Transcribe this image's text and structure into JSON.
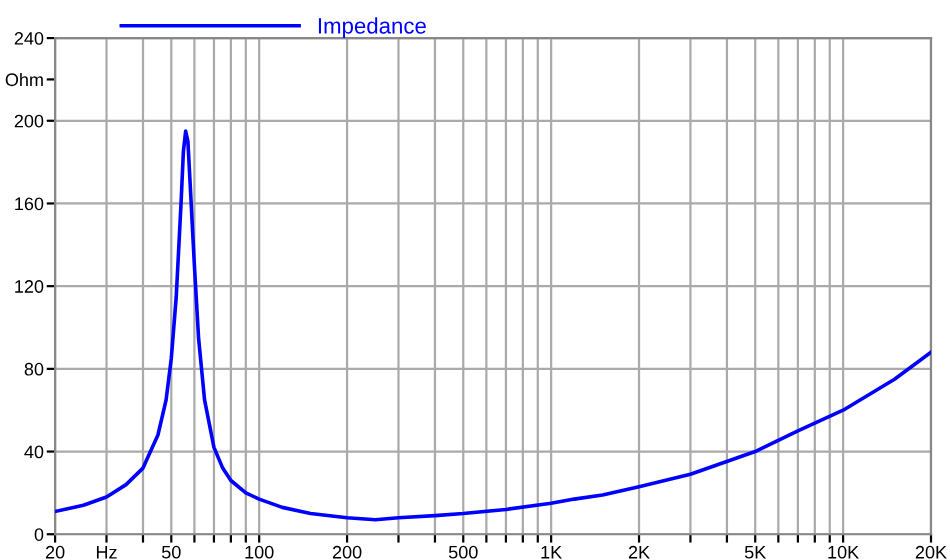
{
  "chart_data": {
    "type": "line",
    "log": "x",
    "grid": true,
    "legend": "top",
    "marker": "none",
    "line_style": "solid",
    "xlim": [
      20,
      20000
    ],
    "ylim": [
      0,
      240
    ],
    "xticks": [
      20,
      {
        "value": 30,
        "label": "Hz"
      },
      {
        "value": 40,
        "label": null
      },
      50,
      {
        "value": 60,
        "label": null
      },
      {
        "value": 70,
        "label": null
      },
      {
        "value": 80,
        "label": null
      },
      {
        "value": 90,
        "label": null
      },
      100,
      200,
      {
        "value": 300,
        "label": null
      },
      {
        "value": 400,
        "label": null
      },
      500,
      {
        "value": 600,
        "label": null
      },
      {
        "value": 700,
        "label": null
      },
      {
        "value": 800,
        "label": null
      },
      {
        "value": 900,
        "label": null
      },
      {
        "value": 1000,
        "label": "1K"
      },
      {
        "value": 2000,
        "label": "2K"
      },
      {
        "value": 3000,
        "label": null
      },
      {
        "value": 4000,
        "label": null
      },
      {
        "value": 5000,
        "label": "5K"
      },
      {
        "value": 6000,
        "label": null
      },
      {
        "value": 7000,
        "label": null
      },
      {
        "value": 8000,
        "label": null
      },
      {
        "value": 9000,
        "label": null
      },
      {
        "value": 10000,
        "label": "10K"
      },
      {
        "value": 20000,
        "label": "20K"
      }
    ],
    "yticks": [
      0,
      40,
      80,
      120,
      160,
      200,
      {
        "value": 220,
        "label": "Ohm"
      },
      240
    ],
    "x": [
      20,
      25,
      30,
      35,
      40,
      45,
      48,
      50,
      52,
      54,
      55,
      56,
      57,
      58,
      60,
      62,
      65,
      70,
      75,
      80,
      90,
      100,
      120,
      150,
      200,
      250,
      300,
      400,
      500,
      700,
      1000,
      1200,
      1500,
      2000,
      3000,
      5000,
      7000,
      10000,
      15000,
      20000
    ],
    "series": [
      {
        "name": "Impedance",
        "color": "#0000ff",
        "values": [
          11,
          14,
          18,
          24,
          32,
          48,
          65,
          85,
          115,
          160,
          185,
          195,
          190,
          170,
          130,
          95,
          65,
          42,
          32,
          26,
          20,
          17,
          13,
          10,
          8,
          7,
          8,
          9,
          10,
          12,
          15,
          17,
          19,
          23,
          29,
          40,
          50,
          60,
          75,
          88
        ]
      }
    ]
  }
}
